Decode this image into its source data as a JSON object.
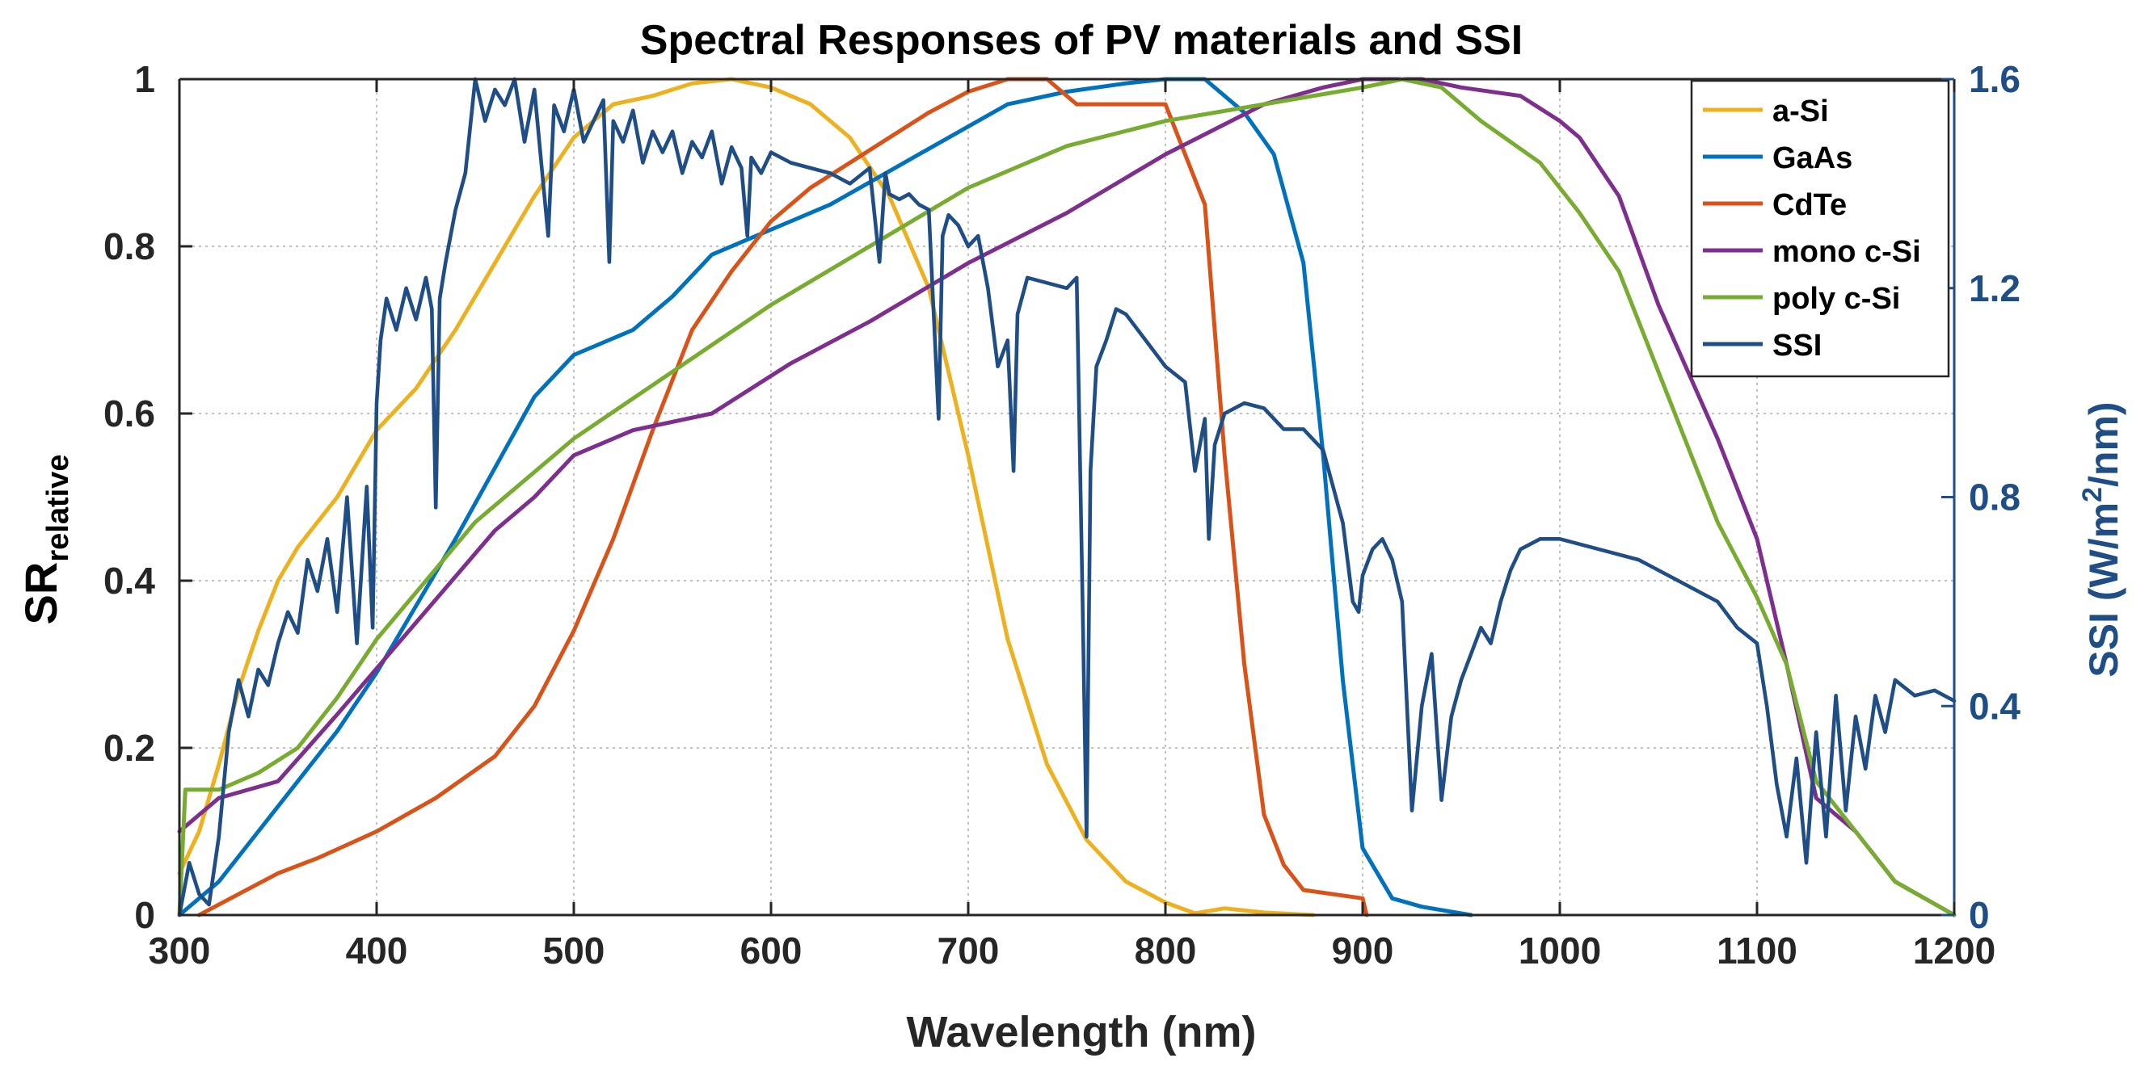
{
  "chart_data": {
    "type": "line",
    "title": "Spectral Responses of PV materials and SSI",
    "xlabel": "Wavelength (nm)",
    "ylabel": "SR",
    "ylabel_sub": "relative",
    "y2label_pre": "SSI (W/m",
    "y2label_sup": "2",
    "y2label_post": "/nm)",
    "xlim": [
      300,
      1200
    ],
    "ylim": [
      0,
      1
    ],
    "y2lim": [
      0,
      1.6
    ],
    "xticks": [
      "300",
      "400",
      "500",
      "600",
      "700",
      "800",
      "900",
      "1000",
      "1100",
      "1200"
    ],
    "yticks": [
      "0",
      "0.2",
      "0.4",
      "0.6",
      "0.8",
      "1"
    ],
    "y2ticks": [
      "0",
      "0.4",
      "0.8",
      "1.2",
      "1.6"
    ],
    "grid": true,
    "legend_position": "top-right",
    "series": [
      {
        "name": "a-Si",
        "color": "#EDB120",
        "axis": "left",
        "x": [
          300,
          310,
          320,
          330,
          340,
          350,
          360,
          370,
          380,
          400,
          420,
          440,
          460,
          480,
          500,
          520,
          540,
          560,
          580,
          600,
          620,
          640,
          660,
          680,
          700,
          720,
          740,
          760,
          780,
          800,
          815,
          830,
          850,
          875
        ],
        "y": [
          0.05,
          0.1,
          0.18,
          0.27,
          0.34,
          0.4,
          0.44,
          0.47,
          0.5,
          0.58,
          0.63,
          0.7,
          0.78,
          0.86,
          0.93,
          0.97,
          0.98,
          0.995,
          1.0,
          0.99,
          0.97,
          0.93,
          0.86,
          0.75,
          0.55,
          0.33,
          0.18,
          0.09,
          0.04,
          0.015,
          0.002,
          0.008,
          0.003,
          0.0
        ]
      },
      {
        "name": "GaAs",
        "color": "#0072BD",
        "axis": "left",
        "x": [
          300,
          320,
          340,
          360,
          380,
          400,
          440,
          480,
          500,
          530,
          550,
          570,
          590,
          610,
          630,
          660,
          690,
          720,
          750,
          780,
          800,
          820,
          840,
          855,
          870,
          880,
          890,
          900,
          915,
          930,
          955
        ],
        "y": [
          0.0,
          0.04,
          0.1,
          0.16,
          0.22,
          0.29,
          0.45,
          0.62,
          0.67,
          0.7,
          0.74,
          0.79,
          0.81,
          0.83,
          0.85,
          0.89,
          0.93,
          0.97,
          0.985,
          0.995,
          1.0,
          1.0,
          0.96,
          0.91,
          0.78,
          0.55,
          0.28,
          0.08,
          0.02,
          0.01,
          0.0
        ]
      },
      {
        "name": "CdTe",
        "color": "#D95319",
        "axis": "left",
        "x": [
          310,
          330,
          350,
          370,
          400,
          430,
          460,
          480,
          500,
          520,
          540,
          560,
          580,
          600,
          620,
          640,
          660,
          680,
          700,
          720,
          740,
          755,
          770,
          800,
          820,
          830,
          840,
          850,
          860,
          870,
          900,
          902
        ],
        "y": [
          0.0,
          0.025,
          0.05,
          0.068,
          0.1,
          0.14,
          0.19,
          0.25,
          0.34,
          0.45,
          0.58,
          0.7,
          0.77,
          0.83,
          0.87,
          0.9,
          0.93,
          0.96,
          0.985,
          1.0,
          1.0,
          0.97,
          0.97,
          0.97,
          0.85,
          0.55,
          0.3,
          0.12,
          0.06,
          0.03,
          0.02,
          0.0
        ]
      },
      {
        "name": "mono c-Si",
        "color": "#7E2F8E",
        "axis": "left",
        "x": [
          300,
          320,
          350,
          380,
          420,
          460,
          480,
          500,
          530,
          570,
          610,
          650,
          700,
          750,
          800,
          850,
          880,
          900,
          930,
          950,
          980,
          1000,
          1010,
          1030,
          1050,
          1080,
          1100,
          1115,
          1130,
          1150,
          1170,
          1200
        ],
        "y": [
          0.1,
          0.14,
          0.16,
          0.24,
          0.35,
          0.46,
          0.5,
          0.55,
          0.58,
          0.6,
          0.66,
          0.71,
          0.78,
          0.84,
          0.91,
          0.97,
          0.99,
          1.0,
          1.0,
          0.99,
          0.98,
          0.95,
          0.93,
          0.86,
          0.73,
          0.57,
          0.45,
          0.3,
          0.14,
          0.1,
          0.04,
          0.0
        ]
      },
      {
        "name": "poly c-Si",
        "color": "#77AC30",
        "axis": "left",
        "x": [
          300,
          303,
          320,
          340,
          360,
          380,
          400,
          450,
          500,
          550,
          600,
          650,
          700,
          750,
          800,
          850,
          900,
          920,
          940,
          960,
          990,
          1010,
          1030,
          1050,
          1080,
          1100,
          1115,
          1130,
          1150,
          1170,
          1200
        ],
        "y": [
          0.0,
          0.15,
          0.15,
          0.17,
          0.2,
          0.26,
          0.33,
          0.47,
          0.57,
          0.65,
          0.73,
          0.8,
          0.87,
          0.92,
          0.95,
          0.97,
          0.99,
          1.0,
          0.99,
          0.95,
          0.9,
          0.84,
          0.77,
          0.65,
          0.47,
          0.38,
          0.3,
          0.16,
          0.1,
          0.04,
          0.0
        ]
      },
      {
        "name": "SSI",
        "color": "#1F4E87",
        "axis": "right",
        "x": [
          300,
          305,
          310,
          315,
          320,
          325,
          330,
          335,
          340,
          345,
          350,
          355,
          360,
          365,
          370,
          375,
          380,
          385,
          390,
          395,
          398,
          400,
          402,
          405,
          410,
          415,
          420,
          425,
          428,
          430,
          432,
          435,
          440,
          445,
          450,
          455,
          460,
          465,
          470,
          475,
          480,
          485,
          487,
          490,
          495,
          500,
          505,
          510,
          515,
          518,
          520,
          525,
          530,
          535,
          540,
          545,
          550,
          555,
          560,
          565,
          570,
          575,
          580,
          585,
          588,
          590,
          595,
          600,
          610,
          620,
          630,
          640,
          650,
          655,
          658,
          660,
          665,
          670,
          675,
          680,
          685,
          687,
          690,
          695,
          700,
          705,
          710,
          715,
          720,
          723,
          725,
          730,
          740,
          750,
          755,
          758,
          760,
          762,
          765,
          770,
          775,
          780,
          790,
          800,
          810,
          815,
          820,
          822,
          825,
          830,
          840,
          850,
          860,
          870,
          880,
          890,
          895,
          898,
          900,
          905,
          910,
          915,
          920,
          925,
          930,
          935,
          940,
          945,
          950,
          955,
          960,
          965,
          970,
          975,
          980,
          990,
          1000,
          1020,
          1040,
          1060,
          1080,
          1090,
          1100,
          1105,
          1110,
          1115,
          1120,
          1125,
          1130,
          1135,
          1140,
          1145,
          1150,
          1155,
          1160,
          1165,
          1170,
          1180,
          1190,
          1200
        ],
        "y": [
          0.0,
          0.1,
          0.04,
          0.02,
          0.15,
          0.35,
          0.45,
          0.38,
          0.47,
          0.44,
          0.52,
          0.58,
          0.54,
          0.68,
          0.62,
          0.72,
          0.58,
          0.8,
          0.52,
          0.82,
          0.55,
          0.98,
          1.1,
          1.18,
          1.12,
          1.2,
          1.14,
          1.22,
          1.16,
          0.78,
          1.18,
          1.25,
          1.35,
          1.42,
          1.6,
          1.52,
          1.58,
          1.55,
          1.6,
          1.48,
          1.58,
          1.38,
          1.3,
          1.55,
          1.5,
          1.58,
          1.48,
          1.52,
          1.56,
          1.25,
          1.52,
          1.48,
          1.54,
          1.44,
          1.5,
          1.46,
          1.5,
          1.42,
          1.48,
          1.45,
          1.5,
          1.4,
          1.47,
          1.43,
          1.3,
          1.45,
          1.42,
          1.46,
          1.44,
          1.43,
          1.42,
          1.4,
          1.43,
          1.25,
          1.42,
          1.38,
          1.37,
          1.38,
          1.36,
          1.35,
          0.95,
          1.3,
          1.34,
          1.32,
          1.28,
          1.3,
          1.2,
          1.05,
          1.1,
          0.85,
          1.15,
          1.22,
          1.21,
          1.2,
          1.22,
          0.6,
          0.15,
          0.85,
          1.05,
          1.1,
          1.16,
          1.15,
          1.1,
          1.05,
          1.02,
          0.85,
          0.95,
          0.72,
          0.9,
          0.96,
          0.98,
          0.97,
          0.93,
          0.93,
          0.89,
          0.75,
          0.6,
          0.58,
          0.65,
          0.7,
          0.72,
          0.68,
          0.6,
          0.2,
          0.4,
          0.5,
          0.22,
          0.38,
          0.45,
          0.5,
          0.55,
          0.52,
          0.6,
          0.66,
          0.7,
          0.72,
          0.72,
          0.7,
          0.68,
          0.64,
          0.6,
          0.55,
          0.52,
          0.4,
          0.25,
          0.15,
          0.3,
          0.1,
          0.35,
          0.15,
          0.42,
          0.2,
          0.38,
          0.28,
          0.42,
          0.35,
          0.45,
          0.42,
          0.43,
          0.41
        ]
      }
    ]
  }
}
